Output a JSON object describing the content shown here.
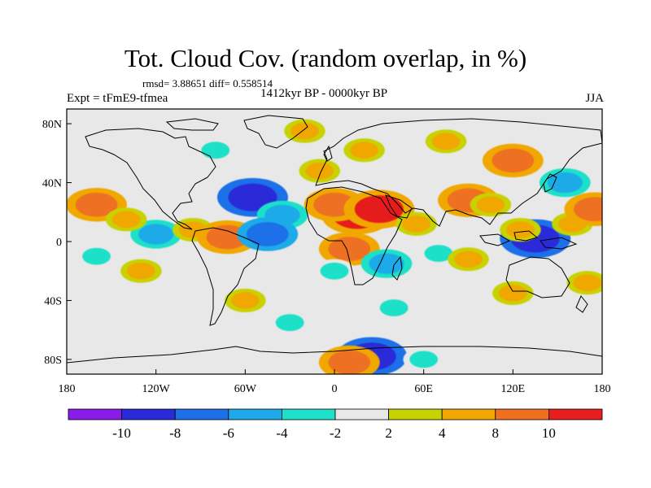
{
  "title": "Tot. Cloud Cov. (random overlap, in %)",
  "stats": "rmsd= 3.88651 diff= 0.558514",
  "expt": "Expt = tFmE9-tfmea",
  "period": "1412kyr BP - 0000kyr BP",
  "season": "JJA",
  "map": {
    "lon_ticks": [
      "180",
      "120W",
      "60W",
      "0",
      "60E",
      "120E",
      "180"
    ],
    "lat_ticks": [
      "80N",
      "40N",
      "0",
      "40S",
      "80S"
    ],
    "background": "#e8e8e8",
    "coast_color": "#000000"
  },
  "colorbar": {
    "colors": [
      "#8a1ce8",
      "#2a2ad8",
      "#1f6fe8",
      "#1eaae8",
      "#1fe0c8",
      "#e8e8e8",
      "#c8d200",
      "#f0a800",
      "#ee7020",
      "#e61e1e"
    ],
    "labels": [
      "-10",
      "-8",
      "-6",
      "-4",
      "-2",
      "2",
      "4",
      "8",
      "10"
    ]
  },
  "chart_data": {
    "type": "heatmap",
    "title": "Tot. Cloud Cov. (random overlap, in %)",
    "variable": "total cloud cover difference (%)",
    "lon_range": [
      -180,
      180
    ],
    "lat_range": [
      -90,
      90
    ],
    "levels": [
      -10,
      -8,
      -6,
      -4,
      -2,
      2,
      4,
      8,
      10
    ],
    "anomalies": [
      {
        "lon": 15,
        "lat": 18,
        "value": 10
      },
      {
        "lon": 0,
        "lat": 25,
        "value": 8
      },
      {
        "lon": 30,
        "lat": 22,
        "value": 10
      },
      {
        "lon": 55,
        "lat": 12,
        "value": 4
      },
      {
        "lon": -55,
        "lat": 30,
        "value": -10
      },
      {
        "lon": -35,
        "lat": 18,
        "value": -6
      },
      {
        "lon": -120,
        "lat": 5,
        "value": -6
      },
      {
        "lon": -95,
        "lat": 8,
        "value": 4
      },
      {
        "lon": -72,
        "lat": 3,
        "value": 8
      },
      {
        "lon": -160,
        "lat": 25,
        "value": 8
      },
      {
        "lon": -140,
        "lat": 15,
        "value": 4
      },
      {
        "lon": 135,
        "lat": 2,
        "value": -10
      },
      {
        "lon": 160,
        "lat": 12,
        "value": 4
      },
      {
        "lon": 175,
        "lat": 22,
        "value": 8
      },
      {
        "lon": 90,
        "lat": 28,
        "value": 8
      },
      {
        "lon": 105,
        "lat": 25,
        "value": 4
      },
      {
        "lon": 125,
        "lat": 8,
        "value": 4
      },
      {
        "lon": 155,
        "lat": 40,
        "value": -6
      },
      {
        "lon": 120,
        "lat": 55,
        "value": 8
      },
      {
        "lon": 75,
        "lat": 68,
        "value": 4
      },
      {
        "lon": 20,
        "lat": 62,
        "value": 4
      },
      {
        "lon": -10,
        "lat": 48,
        "value": 4
      },
      {
        "lon": -80,
        "lat": 62,
        "value": -4
      },
      {
        "lon": -120,
        "lat": 70,
        "value": -2
      },
      {
        "lon": -20,
        "lat": 75,
        "value": 4
      },
      {
        "lon": -45,
        "lat": 5,
        "value": -8
      },
      {
        "lon": 10,
        "lat": -5,
        "value": 8
      },
      {
        "lon": 0,
        "lat": -20,
        "value": -4
      },
      {
        "lon": 35,
        "lat": -15,
        "value": -6
      },
      {
        "lon": 70,
        "lat": -8,
        "value": -4
      },
      {
        "lon": 90,
        "lat": -12,
        "value": 4
      },
      {
        "lon": -160,
        "lat": -10,
        "value": -4
      },
      {
        "lon": -130,
        "lat": -20,
        "value": 4
      },
      {
        "lon": -60,
        "lat": -40,
        "value": 4
      },
      {
        "lon": 120,
        "lat": -35,
        "value": 4
      },
      {
        "lon": 170,
        "lat": -28,
        "value": 4
      },
      {
        "lon": -30,
        "lat": -55,
        "value": -4
      },
      {
        "lon": 40,
        "lat": -45,
        "value": -4
      },
      {
        "lon": 25,
        "lat": -78,
        "value": -10
      },
      {
        "lon": 60,
        "lat": -80,
        "value": -4
      },
      {
        "lon": 10,
        "lat": -82,
        "value": 8
      }
    ]
  }
}
